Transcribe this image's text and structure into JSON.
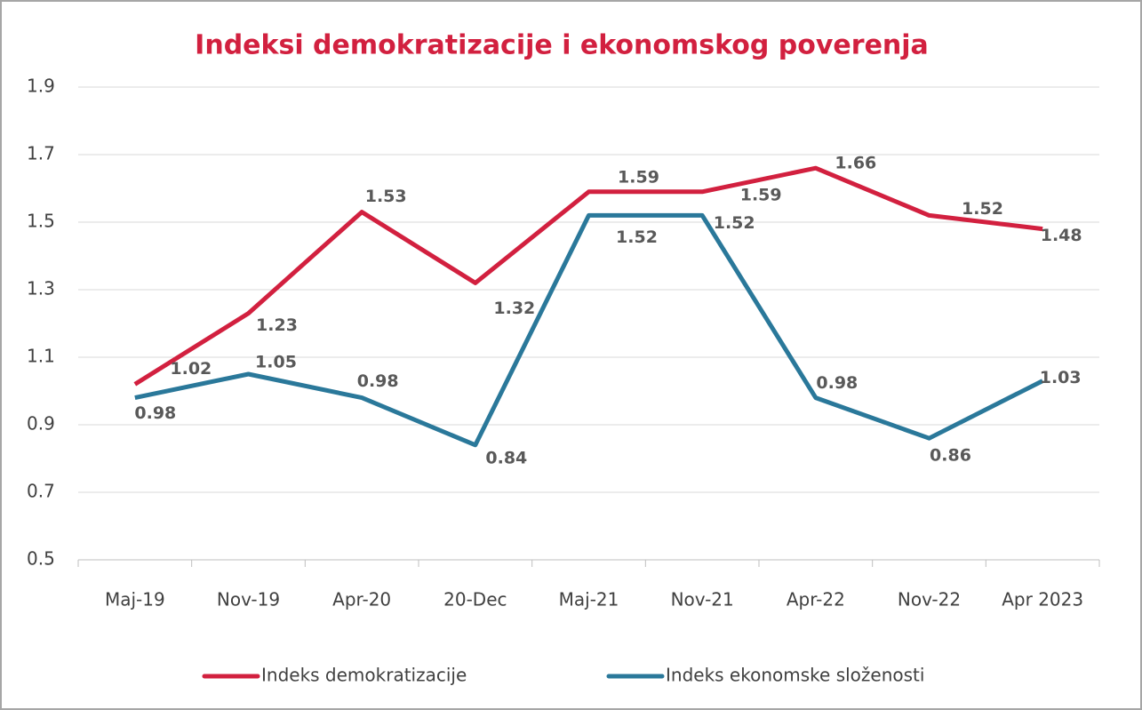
{
  "chart_data": {
    "type": "line",
    "title": "Indeksi demokratizacije i ekonomskog poverenja",
    "categories": [
      "Maj-19",
      "Nov-19",
      "Apr-20",
      "20-Dec",
      "Maj-21",
      "Nov-21",
      "Apr-22",
      "Nov-22",
      "Apr 2023"
    ],
    "series": [
      {
        "name": "Indeks demokratizacije",
        "color": "#d2203f",
        "values": [
          1.02,
          1.23,
          1.53,
          1.32,
          1.59,
          1.59,
          1.66,
          1.52,
          1.48
        ]
      },
      {
        "name": "Indeks ekonomske složenosti",
        "color": "#2a789a",
        "values": [
          0.98,
          1.05,
          0.98,
          0.84,
          1.52,
          1.52,
          0.98,
          0.86,
          1.03
        ]
      }
    ],
    "ylim": [
      0.5,
      1.9
    ],
    "yticks": [
      0.5,
      0.7,
      0.9,
      1.1,
      1.3,
      1.5,
      1.7,
      1.9
    ],
    "grid": true,
    "legend": "bottom"
  }
}
